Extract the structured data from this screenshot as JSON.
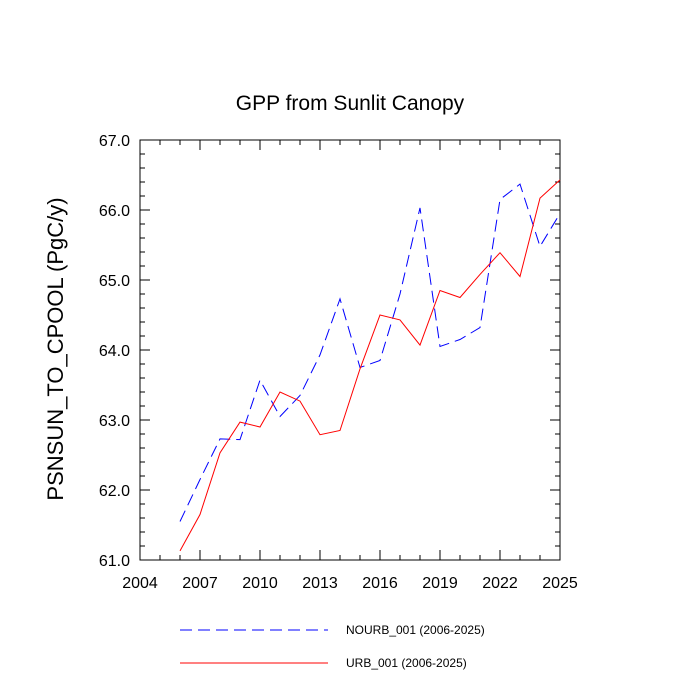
{
  "chart_data": {
    "type": "line",
    "title": "GPP from Sunlit Canopy",
    "xlabel": "",
    "ylabel": "PSNSUN_TO_CPOOL  (PgC/y)",
    "xlim": [
      2004,
      2025
    ],
    "ylim": [
      61.0,
      67.0
    ],
    "x_ticks": [
      2004,
      2007,
      2010,
      2013,
      2016,
      2019,
      2022,
      2025
    ],
    "x_tick_labels": [
      "2004",
      "2007",
      "2010",
      "2013",
      "2016",
      "2019",
      "2022",
      "2025"
    ],
    "y_ticks": [
      61.0,
      62.0,
      63.0,
      64.0,
      65.0,
      66.0,
      67.0
    ],
    "y_tick_labels": [
      "61.0",
      "62.0",
      "63.0",
      "64.0",
      "65.0",
      "66.0",
      "67.0"
    ],
    "grid": false,
    "legend_position": "bottom",
    "x": [
      2006,
      2007,
      2008,
      2009,
      2010,
      2011,
      2012,
      2013,
      2014,
      2015,
      2016,
      2017,
      2018,
      2019,
      2020,
      2021,
      2022,
      2023,
      2024,
      2025
    ],
    "series": [
      {
        "name": "NOURB_001 (2006-2025)",
        "color": "#0000ff",
        "style": "dashed",
        "values": [
          61.55,
          62.15,
          62.73,
          62.72,
          63.57,
          63.05,
          63.35,
          63.93,
          64.73,
          63.75,
          63.85,
          64.8,
          66.03,
          64.05,
          64.15,
          64.32,
          66.15,
          66.37,
          65.48,
          65.95
        ]
      },
      {
        "name": "URB_001 (2006-2025)",
        "color": "#ff0000",
        "style": "solid",
        "values": [
          61.13,
          61.65,
          62.53,
          62.97,
          62.9,
          63.4,
          63.27,
          62.79,
          62.85,
          63.73,
          64.5,
          64.43,
          64.07,
          64.85,
          64.75,
          65.08,
          65.39,
          65.05,
          66.17,
          66.43
        ]
      }
    ]
  }
}
